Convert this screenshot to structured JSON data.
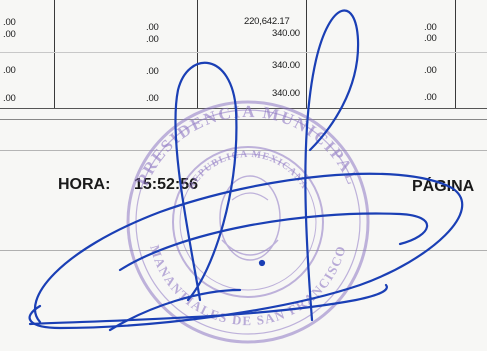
{
  "table": {
    "rows": [
      {
        "c1": ".00",
        "c2": ".00",
        "c3": "220,642.17",
        "c4": ".00"
      },
      {
        "c1": ".00",
        "c2": ".00",
        "c3": "340.00",
        "c4": ".00"
      },
      {
        "c1": ".00",
        "c2": ".00",
        "c3": "340.00",
        "c4": ".00"
      },
      {
        "c1": ".00",
        "c2": ".00",
        "c3": "340.00",
        "c4": ".00"
      }
    ]
  },
  "footer": {
    "hora_label": "HORA:",
    "hora_value": "15:52:56",
    "pagina_label": "PÁGINA"
  },
  "stamp": {
    "top_text": "PRESIDENCIA MUNICIPAL",
    "inner_text": "REPUBLICA MEXICANA",
    "bottom_text": "MANANTIALES DE SAN FRANCISCO"
  },
  "colors": {
    "ink": "#1a1a1a",
    "signature": "#1a3fb5",
    "stamp": "#8f78c4"
  }
}
